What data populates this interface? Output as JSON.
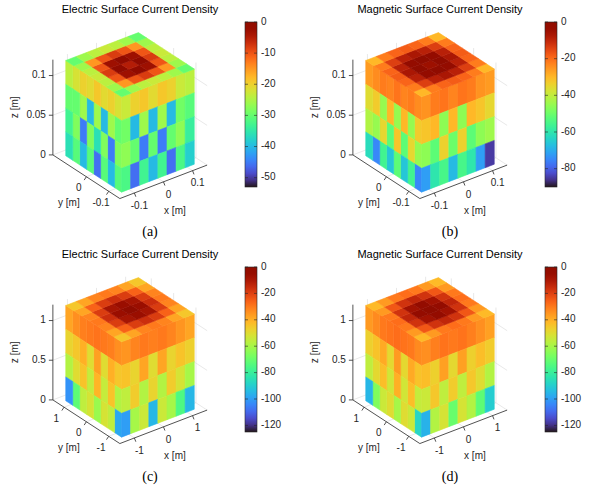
{
  "chart_data": [
    {
      "type": "surface3d",
      "title": "Electric Surface Current Density",
      "panel": "(a)",
      "xlabel": "x [m]",
      "ylabel": "y [m]",
      "zlabel": "z [m]",
      "grid": true,
      "xlim": [
        -0.15,
        0.15
      ],
      "ylim": [
        -0.15,
        0.15
      ],
      "zlim": [
        0,
        0.12
      ],
      "xticks": [
        -0.1,
        0,
        0.1
      ],
      "yticks": [
        -0.1,
        0
      ],
      "zticks": [
        0,
        0.05,
        0.1
      ],
      "cube": {
        "x": [
          -0.125,
          0.125
        ],
        "y": [
          -0.125,
          0.125
        ],
        "z": [
          0,
          0.12
        ]
      },
      "color_range": [
        -53,
        0
      ],
      "color_ticks": [
        -50,
        -40,
        -30,
        -20,
        -10,
        0
      ],
      "faces": {
        "top": [
          [
            -30,
            -26,
            -24,
            -23,
            -24,
            -26,
            -30
          ],
          [
            -26,
            -15,
            -10,
            -8,
            -10,
            -15,
            -26
          ],
          [
            -24,
            -10,
            -3,
            -1,
            -3,
            -10,
            -24
          ],
          [
            -23,
            -8,
            -1,
            -5,
            -1,
            -8,
            -23
          ],
          [
            -24,
            -10,
            -3,
            -1,
            -3,
            -10,
            -24
          ],
          [
            -26,
            -15,
            -10,
            -8,
            -10,
            -15,
            -26
          ],
          [
            -30,
            -26,
            -24,
            -23,
            -24,
            -26,
            -30
          ]
        ],
        "x_min": [
          [
            -22,
            -20,
            -21,
            -19,
            -21,
            -20,
            -22,
            -24
          ],
          [
            -30,
            -26,
            -40,
            -26,
            -40,
            -26,
            -30,
            -30
          ],
          [
            -28,
            -45,
            -28,
            -36,
            -28,
            -45,
            -28,
            -33
          ],
          [
            -31,
            -40,
            -31,
            -46,
            -31,
            -40,
            -31,
            -36
          ]
        ],
        "y_min": [
          [
            -23,
            -20,
            -19,
            -21,
            -19,
            -20,
            -23,
            -24
          ],
          [
            -29,
            -40,
            -26,
            -40,
            -26,
            -40,
            -29,
            -31
          ],
          [
            -27,
            -30,
            -45,
            -30,
            -45,
            -30,
            -27,
            -34
          ],
          [
            -32,
            -46,
            -33,
            -40,
            -33,
            -46,
            -32,
            -38
          ]
        ]
      }
    },
    {
      "type": "surface3d",
      "title": "Magnetic Surface Current Density",
      "panel": "(b)",
      "xlabel": "x [m]",
      "ylabel": "y [m]",
      "zlabel": "z [m]",
      "grid": true,
      "xlim": [
        -0.15,
        0.15
      ],
      "ylim": [
        -0.15,
        0.15
      ],
      "zlim": [
        0,
        0.12
      ],
      "xticks": [
        -0.1,
        0,
        0.1
      ],
      "yticks": [
        -0.1,
        0
      ],
      "zticks": [
        0,
        0.05,
        0.1
      ],
      "cube": {
        "x": [
          -0.125,
          0.125
        ],
        "y": [
          -0.125,
          0.125
        ],
        "z": [
          0,
          0.12
        ]
      },
      "color_range": [
        -90,
        0
      ],
      "color_ticks": [
        -80,
        -60,
        -40,
        -20,
        0
      ],
      "faces": {
        "top": [
          [
            -30,
            -22,
            -19,
            -18,
            -19,
            -22,
            -30
          ],
          [
            -22,
            -14,
            -9,
            -7,
            -9,
            -14,
            -22
          ],
          [
            -19,
            -9,
            -3,
            -1,
            -3,
            -9,
            -19
          ],
          [
            -18,
            -7,
            -1,
            -5,
            -1,
            -7,
            -18
          ],
          [
            -19,
            -9,
            -3,
            -1,
            -3,
            -9,
            -19
          ],
          [
            -22,
            -14,
            -9,
            -7,
            -9,
            -14,
            -22
          ],
          [
            -30,
            -22,
            -19,
            -18,
            -19,
            -22,
            -30
          ]
        ],
        "x_min": [
          [
            -24,
            -22,
            -23,
            -21,
            -23,
            -22,
            -24,
            -26
          ],
          [
            -33,
            -45,
            -30,
            -45,
            -30,
            -45,
            -33,
            -36
          ],
          [
            -45,
            -35,
            -52,
            -32,
            -52,
            -35,
            -45,
            -42
          ],
          [
            -75,
            -56,
            -66,
            -52,
            -66,
            -56,
            -75,
            -62
          ]
        ],
        "y_min": [
          [
            -25,
            -22,
            -21,
            -23,
            -21,
            -22,
            -25,
            -26
          ],
          [
            -32,
            -30,
            -46,
            -30,
            -46,
            -30,
            -32,
            -35
          ],
          [
            -46,
            -52,
            -34,
            -50,
            -34,
            -52,
            -46,
            -44
          ],
          [
            -72,
            -60,
            -55,
            -68,
            -55,
            -60,
            -72,
            -85
          ]
        ]
      }
    },
    {
      "type": "surface3d",
      "title": "Electric Surface Current Density",
      "panel": "(c)",
      "xlabel": "x [m]",
      "ylabel": "y [m]",
      "zlabel": "z [m]",
      "grid": true,
      "xlim": [
        -1.5,
        1.5
      ],
      "ylim": [
        -1.5,
        1.5
      ],
      "zlim": [
        0,
        1.2
      ],
      "xticks": [
        -1,
        0,
        1
      ],
      "yticks": [
        -1,
        0,
        1
      ],
      "zticks": [
        0,
        0.5,
        1
      ],
      "cube": {
        "x": [
          -1.25,
          1.25
        ],
        "y": [
          -1.25,
          1.25
        ],
        "z": [
          0,
          1.2
        ]
      },
      "color_range": [
        -125,
        0
      ],
      "color_ticks": [
        -120,
        -100,
        -80,
        -60,
        -40,
        -20,
        0
      ],
      "faces": {
        "top": [
          [
            -45,
            -38,
            -32,
            -30,
            -32,
            -38,
            -45
          ],
          [
            -38,
            -26,
            -19,
            -16,
            -19,
            -26,
            -38
          ],
          [
            -32,
            -19,
            -9,
            -6,
            -9,
            -19,
            -32
          ],
          [
            -30,
            -16,
            -6,
            -1,
            -6,
            -16,
            -30
          ],
          [
            -32,
            -19,
            -9,
            -6,
            -9,
            -19,
            -32
          ],
          [
            -38,
            -26,
            -19,
            -16,
            -19,
            -26,
            -38
          ],
          [
            -45,
            -38,
            -32,
            -30,
            -32,
            -38,
            -45
          ]
        ],
        "x_min": [
          [
            -34,
            -31,
            -30,
            -29,
            -30,
            -31,
            -34,
            -38
          ],
          [
            -45,
            -40,
            -50,
            -37,
            -50,
            -40,
            -45,
            -48
          ],
          [
            -58,
            -44,
            -55,
            -41,
            -55,
            -44,
            -50,
            -58
          ],
          [
            -98,
            -56,
            -52,
            -62,
            -52,
            -56,
            -72,
            -102
          ]
        ],
        "y_min": [
          [
            -35,
            -32,
            -30,
            -31,
            -30,
            -32,
            -35,
            -38
          ],
          [
            -44,
            -48,
            -38,
            -50,
            -38,
            -48,
            -44,
            -47
          ],
          [
            -56,
            -46,
            -58,
            -48,
            -58,
            -46,
            -52,
            -60
          ],
          [
            -100,
            -60,
            -54,
            -95,
            -54,
            -60,
            -75,
            -95
          ]
        ]
      }
    },
    {
      "type": "surface3d",
      "title": "Magnetic Surface Current Density",
      "panel": "(d)",
      "xlabel": "x [m]",
      "ylabel": "y [m]",
      "zlabel": "z [m]",
      "grid": true,
      "xlim": [
        -1.5,
        1.5
      ],
      "ylim": [
        -1.5,
        1.5
      ],
      "zlim": [
        0,
        1.2
      ],
      "xticks": [
        -1,
        0,
        1
      ],
      "yticks": [
        -1,
        0,
        1
      ],
      "zticks": [
        0,
        0.5,
        1
      ],
      "cube": {
        "x": [
          -1.25,
          1.25
        ],
        "y": [
          -1.25,
          1.25
        ],
        "z": [
          0,
          1.2
        ]
      },
      "color_range": [
        -125,
        0
      ],
      "color_ticks": [
        -120,
        -100,
        -80,
        -60,
        -40,
        -20,
        0
      ],
      "faces": {
        "top": [
          [
            -42,
            -36,
            -30,
            -28,
            -30,
            -36,
            -42
          ],
          [
            -36,
            -24,
            -17,
            -14,
            -17,
            -24,
            -36
          ],
          [
            -30,
            -17,
            -8,
            -4,
            -8,
            -17,
            -30
          ],
          [
            -28,
            -14,
            -4,
            -1,
            -4,
            -14,
            -28
          ],
          [
            -30,
            -17,
            -8,
            -4,
            -8,
            -17,
            -30
          ],
          [
            -36,
            -24,
            -17,
            -14,
            -17,
            -24,
            -36
          ],
          [
            -42,
            -36,
            -30,
            -28,
            -30,
            -36,
            -42
          ]
        ],
        "x_min": [
          [
            -33,
            -30,
            -29,
            -28,
            -29,
            -30,
            -33,
            -36
          ],
          [
            -44,
            -39,
            -49,
            -36,
            -49,
            -39,
            -44,
            -47
          ],
          [
            -55,
            -43,
            -53,
            -40,
            -53,
            -43,
            -49,
            -56
          ],
          [
            -88,
            -54,
            -50,
            -60,
            -50,
            -54,
            -66,
            -95
          ]
        ],
        "y_min": [
          [
            -34,
            -31,
            -29,
            -30,
            -29,
            -31,
            -34,
            -37
          ],
          [
            -43,
            -47,
            -37,
            -49,
            -37,
            -47,
            -43,
            -46
          ],
          [
            -54,
            -45,
            -56,
            -46,
            -56,
            -45,
            -50,
            -58
          ],
          [
            -96,
            -58,
            -52,
            -70,
            -52,
            -58,
            -72,
            -90
          ]
        ]
      }
    }
  ]
}
